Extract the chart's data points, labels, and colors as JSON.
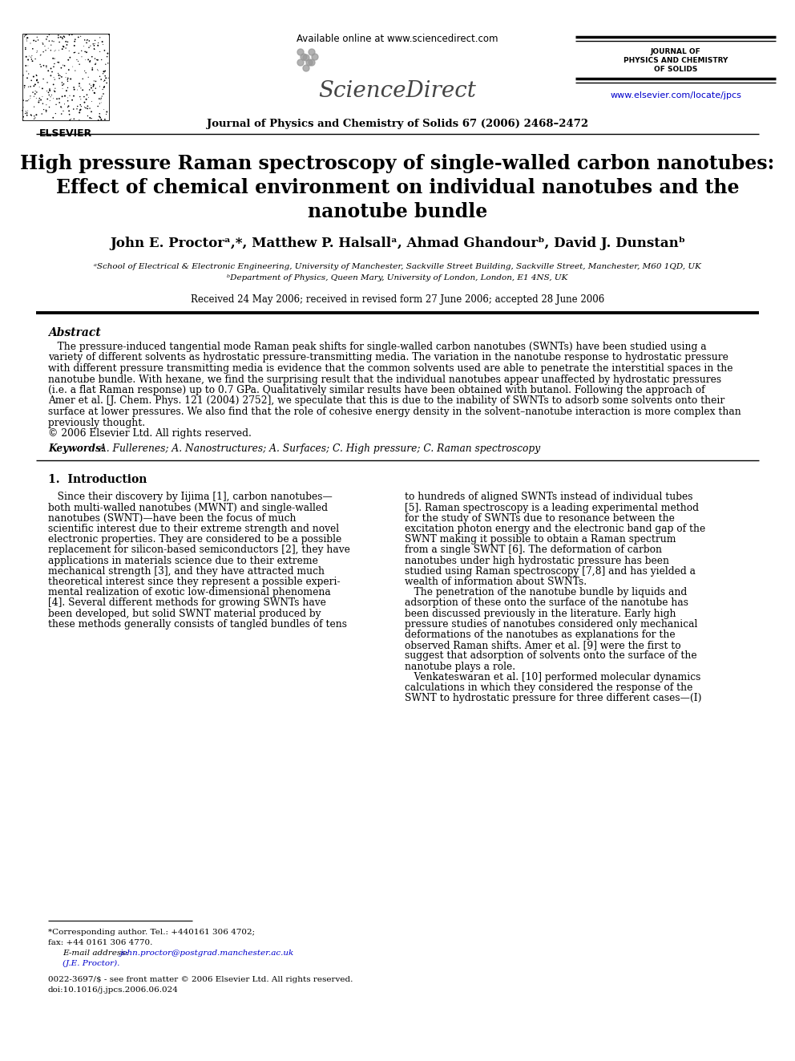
{
  "bg_color": "#ffffff",
  "available_online": "Available online at www.sciencedirect.com",
  "sciencedirect": "ScienceDirect",
  "journal_name_bold": "Journal of Physics and Chemistry of Solids 67 (2006) 2468–2472",
  "journal_short_line1": "JOURNAL OF",
  "journal_short_line2": "PHYSICS AND CHEMISTRY",
  "journal_short_line3": "OF SOLIDS",
  "elsevier_url": "www.elsevier.com/locate/jpcs",
  "elsevier_label": "ELSEVIER",
  "title_line1": "High pressure Raman spectroscopy of single-walled carbon nanotubes:",
  "title_line2": "Effect of chemical environment on individual nanotubes and the",
  "title_line3": "nanotube bundle",
  "authors": "John E. Proctorᵃ,*, Matthew P. Halsallᵃ, Ahmad Ghandourᵇ, David J. Dunstanᵇ",
  "affil1": "ᵃSchool of Electrical & Electronic Engineering, University of Manchester, Sackville Street Building, Sackville Street, Manchester, M60 1QD, UK",
  "affil2": "ᵇDepartment of Physics, Queen Mary, University of London, London, E1 4NS, UK",
  "received": "Received 24 May 2006; received in revised form 27 June 2006; accepted 28 June 2006",
  "abstract_title": "Abstract",
  "abstract_lines": [
    "   The pressure-induced tangential mode Raman peak shifts for single-walled carbon nanotubes (SWNTs) have been studied using a",
    "variety of different solvents as hydrostatic pressure-transmitting media. The variation in the nanotube response to hydrostatic pressure",
    "with different pressure transmitting media is evidence that the common solvents used are able to penetrate the interstitial spaces in the",
    "nanotube bundle. With hexane, we find the surprising result that the individual nanotubes appear unaffected by hydrostatic pressures",
    "(i.e. a flat Raman response) up to 0.7 GPa. Qualitatively similar results have been obtained with butanol. Following the approach of",
    "Amer et al. [J. Chem. Phys. 121 (2004) 2752], we speculate that this is due to the inability of SWNTs to adsorb some solvents onto their",
    "surface at lower pressures. We also find that the role of cohesive energy density in the solvent–nanotube interaction is more complex than",
    "previously thought.",
    "© 2006 Elsevier Ltd. All rights reserved."
  ],
  "keywords_label": "Keywords:",
  "keywords_text": " A. Fullerenes; A. Nanostructures; A. Surfaces; C. High pressure; C. Raman spectroscopy",
  "section1_title": "1.  Introduction",
  "intro_col1_lines": [
    "   Since their discovery by Iijima [1], carbon nanotubes—",
    "both multi-walled nanotubes (MWNT) and single-walled",
    "nanotubes (SWNT)—have been the focus of much",
    "scientific interest due to their extreme strength and novel",
    "electronic properties. They are considered to be a possible",
    "replacement for silicon-based semiconductors [2], they have",
    "applications in materials science due to their extreme",
    "mechanical strength [3], and they have attracted much",
    "theoretical interest since they represent a possible experi-",
    "mental realization of exotic low-dimensional phenomena",
    "[4]. Several different methods for growing SWNTs have",
    "been developed, but solid SWNT material produced by",
    "these methods generally consists of tangled bundles of tens"
  ],
  "intro_col2_lines": [
    "to hundreds of aligned SWNTs instead of individual tubes",
    "[5]. Raman spectroscopy is a leading experimental method",
    "for the study of SWNTs due to resonance between the",
    "excitation photon energy and the electronic band gap of the",
    "SWNT making it possible to obtain a Raman spectrum",
    "from a single SWNT [6]. The deformation of carbon",
    "nanotubes under high hydrostatic pressure has been",
    "studied using Raman spectroscopy [7,8] and has yielded a",
    "wealth of information about SWNTs.",
    "   The penetration of the nanotube bundle by liquids and",
    "adsorption of these onto the surface of the nanotube has",
    "been discussed previously in the literature. Early high",
    "pressure studies of nanotubes considered only mechanical",
    "deformations of the nanotubes as explanations for the",
    "observed Raman shifts. Amer et al. [9] were the first to",
    "suggest that adsorption of solvents onto the surface of the",
    "nanotube plays a role.",
    "   Venkateswaran et al. [10] performed molecular dynamics",
    "calculations in which they considered the response of the",
    "SWNT to hydrostatic pressure for three different cases—(I)"
  ],
  "fn_line": "*Corresponding author. Tel.: +440161 306 4702;",
  "fn_fax": "fax: +44 0161 306 4770.",
  "fn_email_label": "E-mail address: ",
  "fn_email": "john.proctor@postgrad.manchester.ac.uk",
  "fn_je": "(J.E. Proctor).",
  "fn_issn": "0022-3697/$ - see front matter © 2006 Elsevier Ltd. All rights reserved.",
  "fn_doi": "doi:10.1016/j.jpcs.2006.06.024"
}
